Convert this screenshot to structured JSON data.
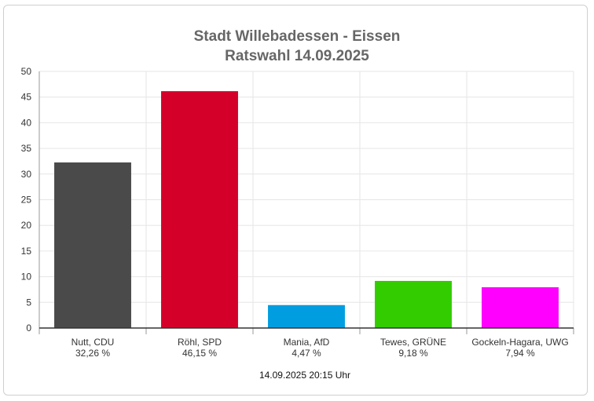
{
  "chart_data": {
    "type": "bar",
    "title": "Stadt Willebadessen - Eissen",
    "subtitle": "Ratswahl 14.09.2025",
    "categories": [
      "Nutt, CDU",
      "Röhl, SPD",
      "Mania, AfD",
      "Tewes, GRÜNE",
      "Gockeln-Hagara, UWG"
    ],
    "values": [
      32.26,
      46.15,
      4.47,
      9.18,
      7.94
    ],
    "value_labels": [
      "32,26 %",
      "46,15 %",
      "4,47 %",
      "9,18 %",
      "7,94 %"
    ],
    "colors": [
      "#4a4a4a",
      "#d4002a",
      "#009ee0",
      "#33cc00",
      "#ff00ff"
    ],
    "ylim": [
      0,
      50
    ],
    "yticks": [
      0,
      5,
      10,
      15,
      20,
      25,
      30,
      35,
      40,
      45,
      50
    ],
    "grid": true,
    "footer": "14.09.2025 20:15 Uhr"
  }
}
